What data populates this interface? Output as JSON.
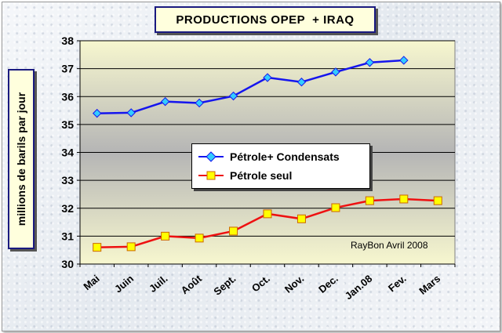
{
  "colors": {
    "series_blue": "#1515ee",
    "series_red": "#ee1111",
    "marker_blue": "#33ccff",
    "marker_yellow": "#ffff00"
  },
  "chart_data": {
    "type": "line",
    "title": "PRODUCTIONS OPEP  + IRAQ",
    "xlabel": "",
    "ylabel": "millions de barils par jour",
    "ylim": [
      30,
      38
    ],
    "yticks": [
      30,
      31,
      32,
      33,
      34,
      35,
      36,
      37,
      38
    ],
    "grid": true,
    "legend_position": "center",
    "categories": [
      "Mai",
      "Juin",
      "Juil.",
      "Août",
      "Sept.",
      "Oct.",
      "Nov.",
      "Dec.",
      "Jan.08",
      "Fev.",
      "Mars"
    ],
    "series": [
      {
        "name": "Pétrole+ Condensats",
        "color": "#1515ee",
        "marker": "diamond",
        "values": [
          35.4,
          35.42,
          35.82,
          35.77,
          36.02,
          36.68,
          36.52,
          36.88,
          37.22,
          37.3,
          null
        ]
      },
      {
        "name": "Pétrole seul",
        "color": "#ee1111",
        "marker": "square",
        "values": [
          30.6,
          30.62,
          31.0,
          30.93,
          31.18,
          31.8,
          31.62,
          32.02,
          32.27,
          32.33,
          32.27
        ]
      }
    ],
    "annotations": [
      "RayBon Avril 2008"
    ]
  }
}
